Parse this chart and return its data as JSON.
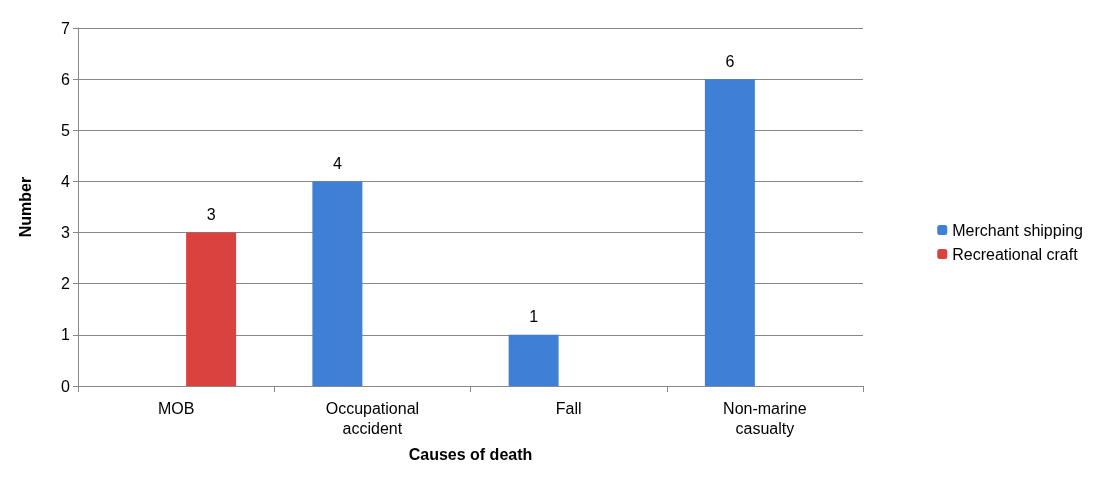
{
  "chart_data": {
    "type": "bar",
    "xlabel": "Causes of death",
    "ylabel": "Number",
    "categories": [
      "MOB",
      "Occupational\naccident",
      "Fall",
      "Non-marine\ncasualty"
    ],
    "series": [
      {
        "name": "Merchant shipping",
        "color": "#3f7fd6",
        "values": [
          null,
          4,
          1,
          6
        ]
      },
      {
        "name": "Recreational craft",
        "color": "#d9423e",
        "values": [
          3,
          null,
          null,
          null
        ]
      }
    ],
    "ylim": [
      0,
      7
    ],
    "yticks": [
      0,
      1,
      2,
      3,
      4,
      5,
      6,
      7
    ],
    "grid": "y",
    "legend": "right",
    "data_labels": true
  }
}
